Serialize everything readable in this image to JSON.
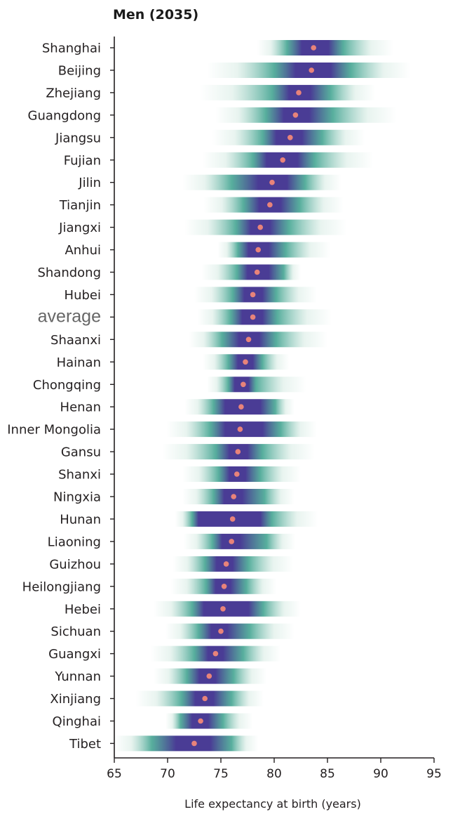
{
  "chart_data": {
    "type": "interval",
    "title": "Men (2035)",
    "xlabel": "Life expectancy at birth (years)",
    "ylabel": "",
    "xlim": [
      65,
      95
    ],
    "xticks": [
      65,
      70,
      75,
      80,
      85,
      90,
      95
    ],
    "xtick_labels": [
      "65",
      "70",
      "75",
      "80",
      "85",
      "90",
      "95"
    ],
    "grid": false,
    "colors": {
      "point": "#e8837a",
      "core": "#4a3c95",
      "mid": "#3aa08c",
      "fade": "#d6ebe3"
    },
    "rows": [
      {
        "label": "Shanghai",
        "median": 83.7,
        "q_low": 82.6,
        "q_high": 85.1,
        "mid_low": 81.2,
        "mid_high": 86.5,
        "min": 78.4,
        "max": 91.2
      },
      {
        "label": "Beijing",
        "median": 83.5,
        "q_low": 82.0,
        "q_high": 85.3,
        "mid_low": 80.0,
        "mid_high": 87.2,
        "min": 73.7,
        "max": 92.8
      },
      {
        "label": "Zhejiang",
        "median": 82.3,
        "q_low": 81.4,
        "q_high": 83.4,
        "mid_low": 79.8,
        "mid_high": 85.3,
        "min": 73.0,
        "max": 89.5
      },
      {
        "label": "Guangdong",
        "median": 82.0,
        "q_low": 80.9,
        "q_high": 83.3,
        "mid_low": 79.2,
        "mid_high": 85.5,
        "min": 74.5,
        "max": 91.5
      },
      {
        "label": "Jiangsu",
        "median": 81.5,
        "q_low": 80.2,
        "q_high": 82.6,
        "mid_low": 78.9,
        "mid_high": 84.5,
        "min": 74.2,
        "max": 88.5
      },
      {
        "label": "Fujian",
        "median": 80.8,
        "q_low": 79.3,
        "q_high": 82.2,
        "mid_low": 78.0,
        "mid_high": 83.8,
        "min": 73.3,
        "max": 89.3
      },
      {
        "label": "Jilin",
        "median": 79.8,
        "q_low": 78.5,
        "q_high": 81.2,
        "mid_low": 76.0,
        "mid_high": 82.9,
        "min": 71.4,
        "max": 86.3
      },
      {
        "label": "Tianjin",
        "median": 79.6,
        "q_low": 78.6,
        "q_high": 80.6,
        "mid_low": 77.1,
        "mid_high": 82.4,
        "min": 73.4,
        "max": 86.5
      },
      {
        "label": "Jiangxi",
        "median": 78.7,
        "q_low": 77.8,
        "q_high": 79.6,
        "mid_low": 76.4,
        "mid_high": 81.4,
        "min": 71.6,
        "max": 86.8
      },
      {
        "label": "Anhui",
        "median": 78.5,
        "q_low": 77.6,
        "q_high": 79.5,
        "mid_low": 76.6,
        "mid_high": 81.1,
        "min": 74.7,
        "max": 85.3
      },
      {
        "label": "Shandong",
        "median": 78.4,
        "q_low": 77.5,
        "q_high": 79.5,
        "mid_low": 76.5,
        "mid_high": 80.9,
        "min": 73.2,
        "max": 82.5
      },
      {
        "label": "Hubei",
        "median": 78.0,
        "q_low": 77.2,
        "q_high": 78.9,
        "mid_low": 76.1,
        "mid_high": 80.2,
        "min": 72.5,
        "max": 84.0
      },
      {
        "label": "",
        "median": 78.0,
        "q_low": 77.0,
        "q_high": 78.9,
        "mid_low": 75.9,
        "mid_high": 80.3,
        "min": 72.8,
        "max": 85.4
      },
      {
        "label": "Shaanxi",
        "median": 77.6,
        "q_low": 76.7,
        "q_high": 78.6,
        "mid_low": 75.1,
        "mid_high": 80.2,
        "min": 72.0,
        "max": 85.0
      },
      {
        "label": "Hainan",
        "median": 77.3,
        "q_low": 76.6,
        "q_high": 78.0,
        "mid_low": 75.7,
        "mid_high": 78.9,
        "min": 73.3,
        "max": 81.4
      },
      {
        "label": "Chongqing",
        "median": 77.1,
        "q_low": 76.3,
        "q_high": 77.6,
        "mid_low": 75.7,
        "mid_high": 78.3,
        "min": 73.7,
        "max": 83.0
      },
      {
        "label": "Henan",
        "median": 76.9,
        "q_low": 75.4,
        "q_high": 78.7,
        "mid_low": 74.3,
        "mid_high": 80.1,
        "min": 71.6,
        "max": 81.9
      },
      {
        "label": "Inner Mongolia",
        "median": 76.8,
        "q_low": 75.4,
        "q_high": 78.9,
        "mid_low": 74.0,
        "mid_high": 80.6,
        "min": 69.9,
        "max": 84.0
      },
      {
        "label": "Gansu",
        "median": 76.6,
        "q_low": 75.8,
        "q_high": 77.5,
        "mid_low": 74.5,
        "mid_high": 78.9,
        "min": 69.5,
        "max": 83.8
      },
      {
        "label": "Shanxi",
        "median": 76.5,
        "q_low": 75.8,
        "q_high": 77.3,
        "mid_low": 74.8,
        "mid_high": 78.7,
        "min": 71.4,
        "max": 82.5
      },
      {
        "label": "Ningxia",
        "median": 76.2,
        "q_low": 75.3,
        "q_high": 77.0,
        "mid_low": 74.3,
        "mid_high": 79.1,
        "min": 71.4,
        "max": 81.9
      },
      {
        "label": "Hunan",
        "median": 76.1,
        "q_low": 72.9,
        "q_high": 78.7,
        "mid_low": 72.3,
        "mid_high": 79.8,
        "min": 70.7,
        "max": 84.1
      },
      {
        "label": "Liaoning",
        "median": 76.0,
        "q_low": 75.1,
        "q_high": 76.8,
        "mid_low": 74.2,
        "mid_high": 79.3,
        "min": 71.5,
        "max": 82.0
      },
      {
        "label": "Guizhou",
        "median": 75.5,
        "q_low": 74.6,
        "q_high": 76.1,
        "mid_low": 73.5,
        "mid_high": 77.6,
        "min": 70.5,
        "max": 81.8
      },
      {
        "label": "Heilongjiang",
        "median": 75.3,
        "q_low": 74.5,
        "q_high": 75.9,
        "mid_low": 73.6,
        "mid_high": 77.4,
        "min": 70.3,
        "max": 80.2
      },
      {
        "label": "Hebei",
        "median": 75.2,
        "q_low": 73.4,
        "q_high": 77.6,
        "mid_low": 72.3,
        "mid_high": 79.0,
        "min": 68.7,
        "max": 82.5
      },
      {
        "label": "Sichuan",
        "median": 75.0,
        "q_low": 74.1,
        "q_high": 75.6,
        "mid_low": 72.9,
        "mid_high": 77.7,
        "min": 69.8,
        "max": 81.9
      },
      {
        "label": "Guangxi",
        "median": 74.5,
        "q_low": 73.8,
        "q_high": 75.2,
        "mid_low": 72.5,
        "mid_high": 77.1,
        "min": 68.4,
        "max": 80.6
      },
      {
        "label": "Yunnan",
        "median": 73.9,
        "q_low": 73.0,
        "q_high": 74.5,
        "mid_low": 71.8,
        "mid_high": 76.2,
        "min": 68.7,
        "max": 79.3
      },
      {
        "label": "Xinjiang",
        "median": 73.5,
        "q_low": 72.6,
        "q_high": 74.3,
        "mid_low": 71.3,
        "mid_high": 76.0,
        "min": 67.0,
        "max": 79.0
      },
      {
        "label": "Qinghai",
        "median": 73.1,
        "q_low": 72.3,
        "q_high": 73.8,
        "mid_low": 71.2,
        "mid_high": 75.2,
        "min": 69.8,
        "max": 78.0
      },
      {
        "label": "Tibet",
        "median": 72.5,
        "q_low": 70.8,
        "q_high": 74.0,
        "mid_low": 68.5,
        "mid_high": 76.0,
        "min": 65.0,
        "max": 78.5
      }
    ],
    "annotations": [
      {
        "text": "average",
        "row": 12
      }
    ]
  }
}
